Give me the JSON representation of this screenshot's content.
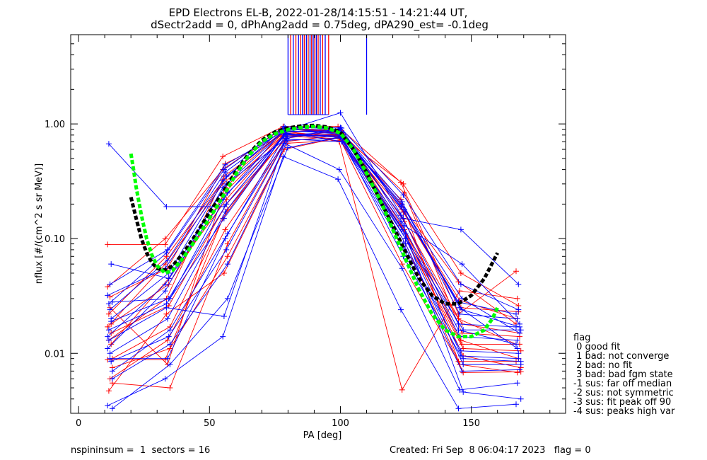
{
  "figure": {
    "title_line1": "EPD Electrons EL-B, 2022-01-28/14:15:51 - 14:21:44 UT,",
    "title_line2": "dSectr2add = 0, dPhAng2add = 0.75deg, dPA290_est=  -0.1deg",
    "footer_left": "nspininsum =  1  sectors = 16",
    "footer_right": "Created: Fri Sep  8 06:04:17 2023   flag = 0"
  },
  "legend": {
    "title": "flag",
    "items": [
      " 0 good fit",
      " 1 bad: not converge",
      " 2 bad: no fit",
      " 3 bad: bad fgm state",
      "-1 sus: far off median",
      "-2 sus: not symmetric",
      "-3 sus: fit peak off 90",
      "-4 sus: peaks high var"
    ]
  },
  "chart_data": {
    "type": "line",
    "title": "EPD Electrons EL-B, 2022-01-28/14:15:51 - 14:21:44 UT,",
    "subtitle": "dSectr2add = 0, dPhAng2add = 0.75deg, dPA290_est=  -0.1deg",
    "xlabel": "PA [deg]",
    "ylabel": "nflux [#/(cm^2 s sr MeV)]",
    "xlim": [
      -3,
      186
    ],
    "ylim": [
      0.003,
      6.0
    ],
    "yscale": "log",
    "xticks": [
      0,
      50,
      100,
      150
    ],
    "xtick_labels": [
      "0",
      "50",
      "100",
      "150"
    ],
    "yticks": [
      0.01,
      0.1,
      1.0
    ],
    "ytick_labels": [
      "0.01",
      "0.10",
      "1.00"
    ],
    "grid": false,
    "pa_bins": [
      12,
      34,
      56,
      79,
      100,
      124,
      146,
      168
    ],
    "colors": {
      "red": "#ff0000",
      "blue": "#0000ff",
      "green": "#00ff00",
      "black": "#000000"
    },
    "series": [
      {
        "color": "red",
        "values": [
          0.0088,
          0.0088,
          0.15,
          0.78,
          0.82,
          0.22,
          0.0085,
          0.0085
        ]
      },
      {
        "color": "red",
        "values": [
          0.013,
          0.03,
          0.35,
          0.85,
          0.9,
          0.18,
          0.029,
          0.02
        ]
      },
      {
        "color": "red",
        "values": [
          0.031,
          0.055,
          0.45,
          0.82,
          0.78,
          0.3,
          0.05,
          0.026
        ]
      },
      {
        "color": "red",
        "values": [
          0.018,
          0.04,
          0.26,
          0.9,
          0.85,
          0.12,
          0.012,
          0.012
        ]
      },
      {
        "color": "red",
        "values": [
          0.0055,
          0.005,
          0.09,
          0.78,
          0.74,
          0.09,
          0.0068,
          0.0069
        ]
      },
      {
        "color": "red",
        "values": [
          0.089,
          0.089,
          0.52,
          0.95,
          0.95,
          0.31,
          0.022,
          0.052
        ]
      },
      {
        "color": "red",
        "values": [
          0.022,
          0.07,
          0.33,
          0.88,
          0.7,
          0.0048,
          0.035,
          0.03
        ]
      },
      {
        "color": "red",
        "values": [
          0.006,
          0.013,
          0.12,
          0.7,
          0.8,
          0.15,
          0.013,
          0.009
        ]
      },
      {
        "color": "red",
        "values": [
          0.015,
          0.026,
          0.2,
          0.75,
          0.88,
          0.14,
          0.018,
          0.015
        ]
      },
      {
        "color": "red",
        "values": [
          0.0075,
          0.011,
          0.07,
          0.68,
          0.72,
          0.11,
          0.0095,
          0.0075
        ]
      },
      {
        "color": "red",
        "values": [
          0.038,
          0.1,
          0.4,
          0.92,
          0.86,
          0.2,
          0.042,
          0.018
        ]
      },
      {
        "color": "red",
        "values": [
          0.0047,
          0.022,
          0.05,
          0.6,
          0.76,
          0.06,
          0.008,
          0.0068
        ]
      },
      {
        "color": "red",
        "values": [
          0.025,
          0.008,
          0.28,
          0.83,
          0.79,
          0.17,
          0.025,
          0.023
        ]
      },
      {
        "color": "red",
        "values": [
          0.012,
          0.045,
          0.22,
          0.87,
          0.83,
          0.25,
          0.015,
          0.014
        ]
      },
      {
        "color": "red",
        "values": [
          0.009,
          0.017,
          0.18,
          0.8,
          0.81,
          0.1,
          0.011,
          0.0105
        ]
      },
      {
        "color": "red",
        "values": [
          0.017,
          0.06,
          0.3,
          0.86,
          0.77,
          0.13,
          0.02,
          0.012
        ]
      },
      {
        "color": "blue",
        "values": [
          0.67,
          0.19,
          0.19,
          0.8,
          0.85,
          0.2,
          0.025,
          0.011
        ]
      },
      {
        "color": "blue",
        "values": [
          0.04,
          0.08,
          0.44,
          0.88,
          1.25,
          0.15,
          0.12,
          0.04
        ]
      },
      {
        "color": "blue",
        "values": [
          0.06,
          0.045,
          0.3,
          0.75,
          0.92,
          0.13,
          0.06,
          0.018
        ]
      },
      {
        "color": "blue",
        "values": [
          0.028,
          0.03,
          0.25,
          0.83,
          0.7,
          0.1,
          0.016,
          0.016
        ]
      },
      {
        "color": "blue",
        "values": [
          0.0035,
          0.006,
          0.014,
          0.52,
          0.33,
          0.024,
          0.0033,
          0.0036
        ]
      },
      {
        "color": "blue",
        "values": [
          0.013,
          0.025,
          0.021,
          0.68,
          0.4,
          0.055,
          0.0048,
          0.0055
        ]
      },
      {
        "color": "blue",
        "values": [
          0.009,
          0.009,
          0.1,
          0.8,
          0.78,
          0.07,
          0.0095,
          0.009
        ]
      },
      {
        "color": "blue",
        "values": [
          0.02,
          0.05,
          0.35,
          0.9,
          0.84,
          0.18,
          0.03,
          0.015
        ]
      },
      {
        "color": "blue",
        "values": [
          0.006,
          0.012,
          0.06,
          0.72,
          0.75,
          0.09,
          0.008,
          0.008
        ]
      },
      {
        "color": "blue",
        "values": [
          0.011,
          0.035,
          0.28,
          0.85,
          0.88,
          0.16,
          0.018,
          0.017
        ]
      },
      {
        "color": "blue",
        "values": [
          0.016,
          0.027,
          0.15,
          0.8,
          0.8,
          0.12,
          0.014,
          0.013
        ]
      },
      {
        "color": "blue",
        "values": [
          0.024,
          0.065,
          0.38,
          0.92,
          0.93,
          0.24,
          0.04,
          0.024
        ]
      },
      {
        "color": "blue",
        "values": [
          0.0085,
          0.014,
          0.08,
          0.74,
          0.7,
          0.08,
          0.007,
          0.0072
        ]
      },
      {
        "color": "blue",
        "values": [
          0.0033,
          0.008,
          0.03,
          0.62,
          0.78,
          0.11,
          0.0046,
          0.004
        ]
      },
      {
        "color": "blue",
        "values": [
          0.014,
          0.04,
          0.22,
          0.88,
          0.82,
          0.14,
          0.016,
          0.012
        ]
      },
      {
        "color": "blue",
        "values": [
          0.027,
          0.075,
          0.4,
          0.95,
          0.9,
          0.21,
          0.022,
          0.02
        ]
      },
      {
        "color": "blue",
        "values": [
          0.01,
          0.02,
          0.17,
          0.82,
          0.76,
          0.09,
          0.0105,
          0.01
        ]
      },
      {
        "color": "blue",
        "values": [
          0.019,
          0.03,
          0.2,
          0.86,
          0.86,
          0.17,
          0.024,
          0.017
        ]
      },
      {
        "color": "blue",
        "values": [
          0.007,
          0.016,
          0.11,
          0.78,
          0.8,
          0.1,
          0.009,
          0.0085
        ]
      },
      {
        "color": "blue",
        "values": [
          0.032,
          0.055,
          0.32,
          0.91,
          0.89,
          0.19,
          0.028,
          0.022
        ]
      }
    ],
    "vertical_lines": [
      {
        "color": "blue",
        "x": 80
      },
      {
        "color": "red",
        "x": 81
      },
      {
        "color": "blue",
        "x": 82
      },
      {
        "color": "red",
        "x": 83
      },
      {
        "color": "blue",
        "x": 84
      },
      {
        "color": "red",
        "x": 84.8
      },
      {
        "color": "blue",
        "x": 85.5
      },
      {
        "color": "red",
        "x": 86.2
      },
      {
        "color": "blue",
        "x": 87
      },
      {
        "color": "red",
        "x": 87.7
      },
      {
        "color": "blue",
        "x": 88.4
      },
      {
        "color": "red",
        "x": 89
      },
      {
        "color": "blue",
        "x": 89.6
      },
      {
        "color": "red",
        "x": 90.2
      },
      {
        "color": "blue",
        "x": 90.8
      },
      {
        "color": "red",
        "x": 91.5
      },
      {
        "color": "blue",
        "x": 92.3
      },
      {
        "color": "red",
        "x": 93.2
      },
      {
        "color": "blue",
        "x": 94.2
      },
      {
        "color": "red",
        "x": 95.5
      },
      {
        "color": "blue",
        "x": 110
      }
    ],
    "fit_black": {
      "x": [
        20,
        22,
        24,
        26,
        28,
        30,
        33,
        36,
        40,
        45,
        50,
        55,
        60,
        65,
        70,
        75,
        80,
        85,
        90,
        95,
        100,
        105,
        110,
        115,
        120,
        125,
        130,
        135,
        140,
        145,
        150,
        155,
        160
      ],
      "y": [
        0.23,
        0.15,
        0.1,
        0.075,
        0.062,
        0.055,
        0.053,
        0.058,
        0.075,
        0.11,
        0.17,
        0.25,
        0.38,
        0.55,
        0.72,
        0.85,
        0.92,
        0.96,
        0.97,
        0.94,
        0.85,
        0.6,
        0.38,
        0.22,
        0.13,
        0.075,
        0.045,
        0.032,
        0.027,
        0.027,
        0.032,
        0.045,
        0.075
      ]
    },
    "fit_green": {
      "x": [
        20,
        21,
        22,
        24,
        26,
        28,
        30,
        33,
        36,
        40,
        45,
        50,
        55,
        60,
        65,
        70,
        75,
        80,
        85,
        90,
        95,
        100,
        105,
        110,
        115,
        120,
        125,
        130,
        135,
        140,
        145,
        150,
        155,
        158,
        160
      ],
      "y": [
        0.55,
        0.4,
        0.28,
        0.16,
        0.1,
        0.072,
        0.058,
        0.05,
        0.053,
        0.068,
        0.1,
        0.15,
        0.23,
        0.36,
        0.53,
        0.7,
        0.82,
        0.89,
        0.93,
        0.95,
        0.92,
        0.83,
        0.6,
        0.37,
        0.22,
        0.12,
        0.065,
        0.036,
        0.022,
        0.016,
        0.014,
        0.014,
        0.016,
        0.02,
        0.025
      ]
    }
  }
}
